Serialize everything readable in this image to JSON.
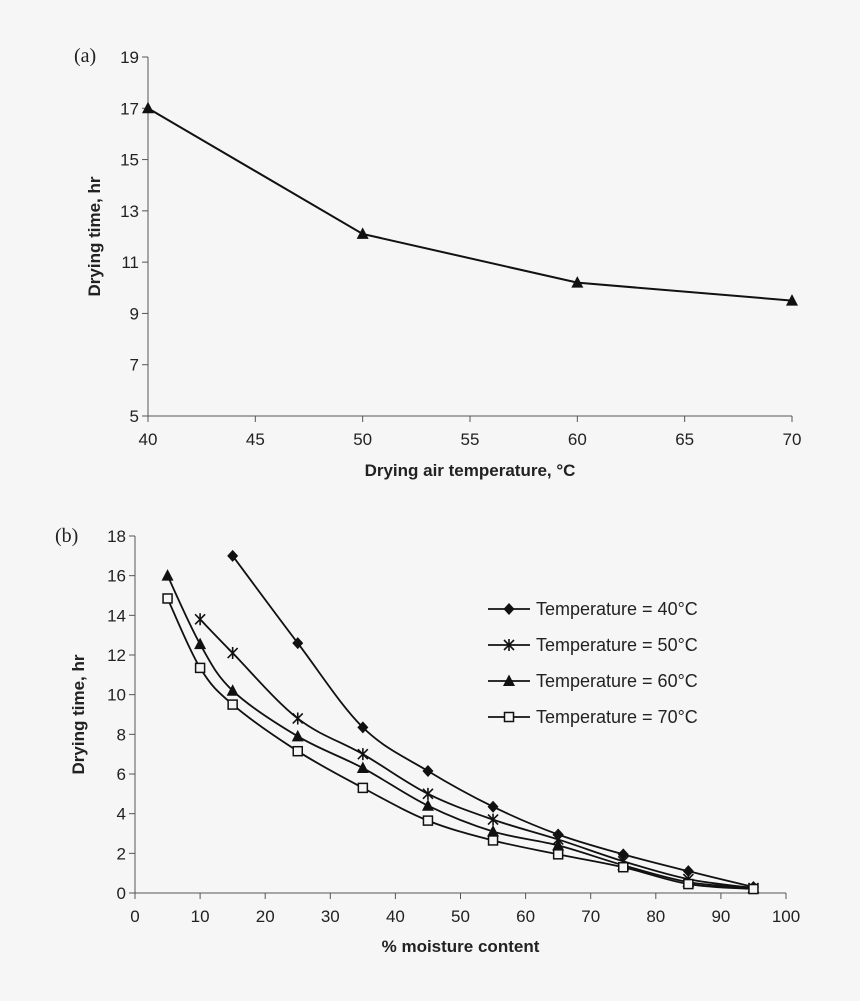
{
  "chart_data": [
    {
      "type": "line",
      "panel_label": "(a)",
      "title": "",
      "xlabel": "Drying air temperature, °C",
      "ylabel": "Drying time, hr",
      "xlim": [
        40,
        70
      ],
      "ylim": [
        5,
        19
      ],
      "xticks": [
        40,
        45,
        50,
        55,
        60,
        65,
        70
      ],
      "yticks": [
        5,
        7,
        9,
        11,
        13,
        15,
        17,
        19
      ],
      "grid": false,
      "legend": "none",
      "series": [
        {
          "marker": "filled-triangle",
          "color": "#111111",
          "x": [
            40,
            50,
            60,
            70
          ],
          "y": [
            17.0,
            12.1,
            10.2,
            9.5
          ]
        }
      ]
    },
    {
      "type": "line",
      "panel_label": "(b)",
      "title": "",
      "xlabel": "% moisture content",
      "ylabel": "Drying time, hr",
      "xlim": [
        0,
        100
      ],
      "ylim": [
        0,
        18
      ],
      "xticks": [
        0,
        10,
        20,
        30,
        40,
        50,
        60,
        70,
        80,
        90,
        100
      ],
      "yticks": [
        0,
        2,
        4,
        6,
        8,
        10,
        12,
        14,
        16,
        18
      ],
      "grid": false,
      "legend": "top-right",
      "series": [
        {
          "name": "Temperature = 40°C",
          "marker": "filled-diamond",
          "color": "#111111",
          "x": [
            15,
            25,
            35,
            45,
            55,
            65,
            75,
            85,
            95
          ],
          "y": [
            17.0,
            12.6,
            8.35,
            6.15,
            4.35,
            2.95,
            1.95,
            1.1,
            0.3
          ]
        },
        {
          "name": "Temperature = 50°C",
          "marker": "star",
          "color": "#111111",
          "x": [
            10,
            15,
            25,
            35,
            45,
            55,
            65,
            75,
            85,
            95
          ],
          "y": [
            13.8,
            12.1,
            8.8,
            7.0,
            5.0,
            3.7,
            2.7,
            1.6,
            0.7,
            0.25
          ]
        },
        {
          "name": "Temperature = 60°C",
          "marker": "filled-triangle",
          "color": "#111111",
          "x": [
            5,
            10,
            15,
            25,
            35,
            45,
            55,
            65,
            75,
            85,
            95
          ],
          "y": [
            16.0,
            12.55,
            10.2,
            7.9,
            6.3,
            4.4,
            3.1,
            2.4,
            1.4,
            0.55,
            0.25
          ]
        },
        {
          "name": "Temperature = 70°C",
          "marker": "open-square",
          "color": "#111111",
          "x": [
            5,
            10,
            15,
            25,
            35,
            45,
            55,
            65,
            75,
            85,
            95
          ],
          "y": [
            14.85,
            11.35,
            9.5,
            7.15,
            5.3,
            3.65,
            2.65,
            1.95,
            1.3,
            0.45,
            0.2
          ]
        }
      ]
    }
  ]
}
